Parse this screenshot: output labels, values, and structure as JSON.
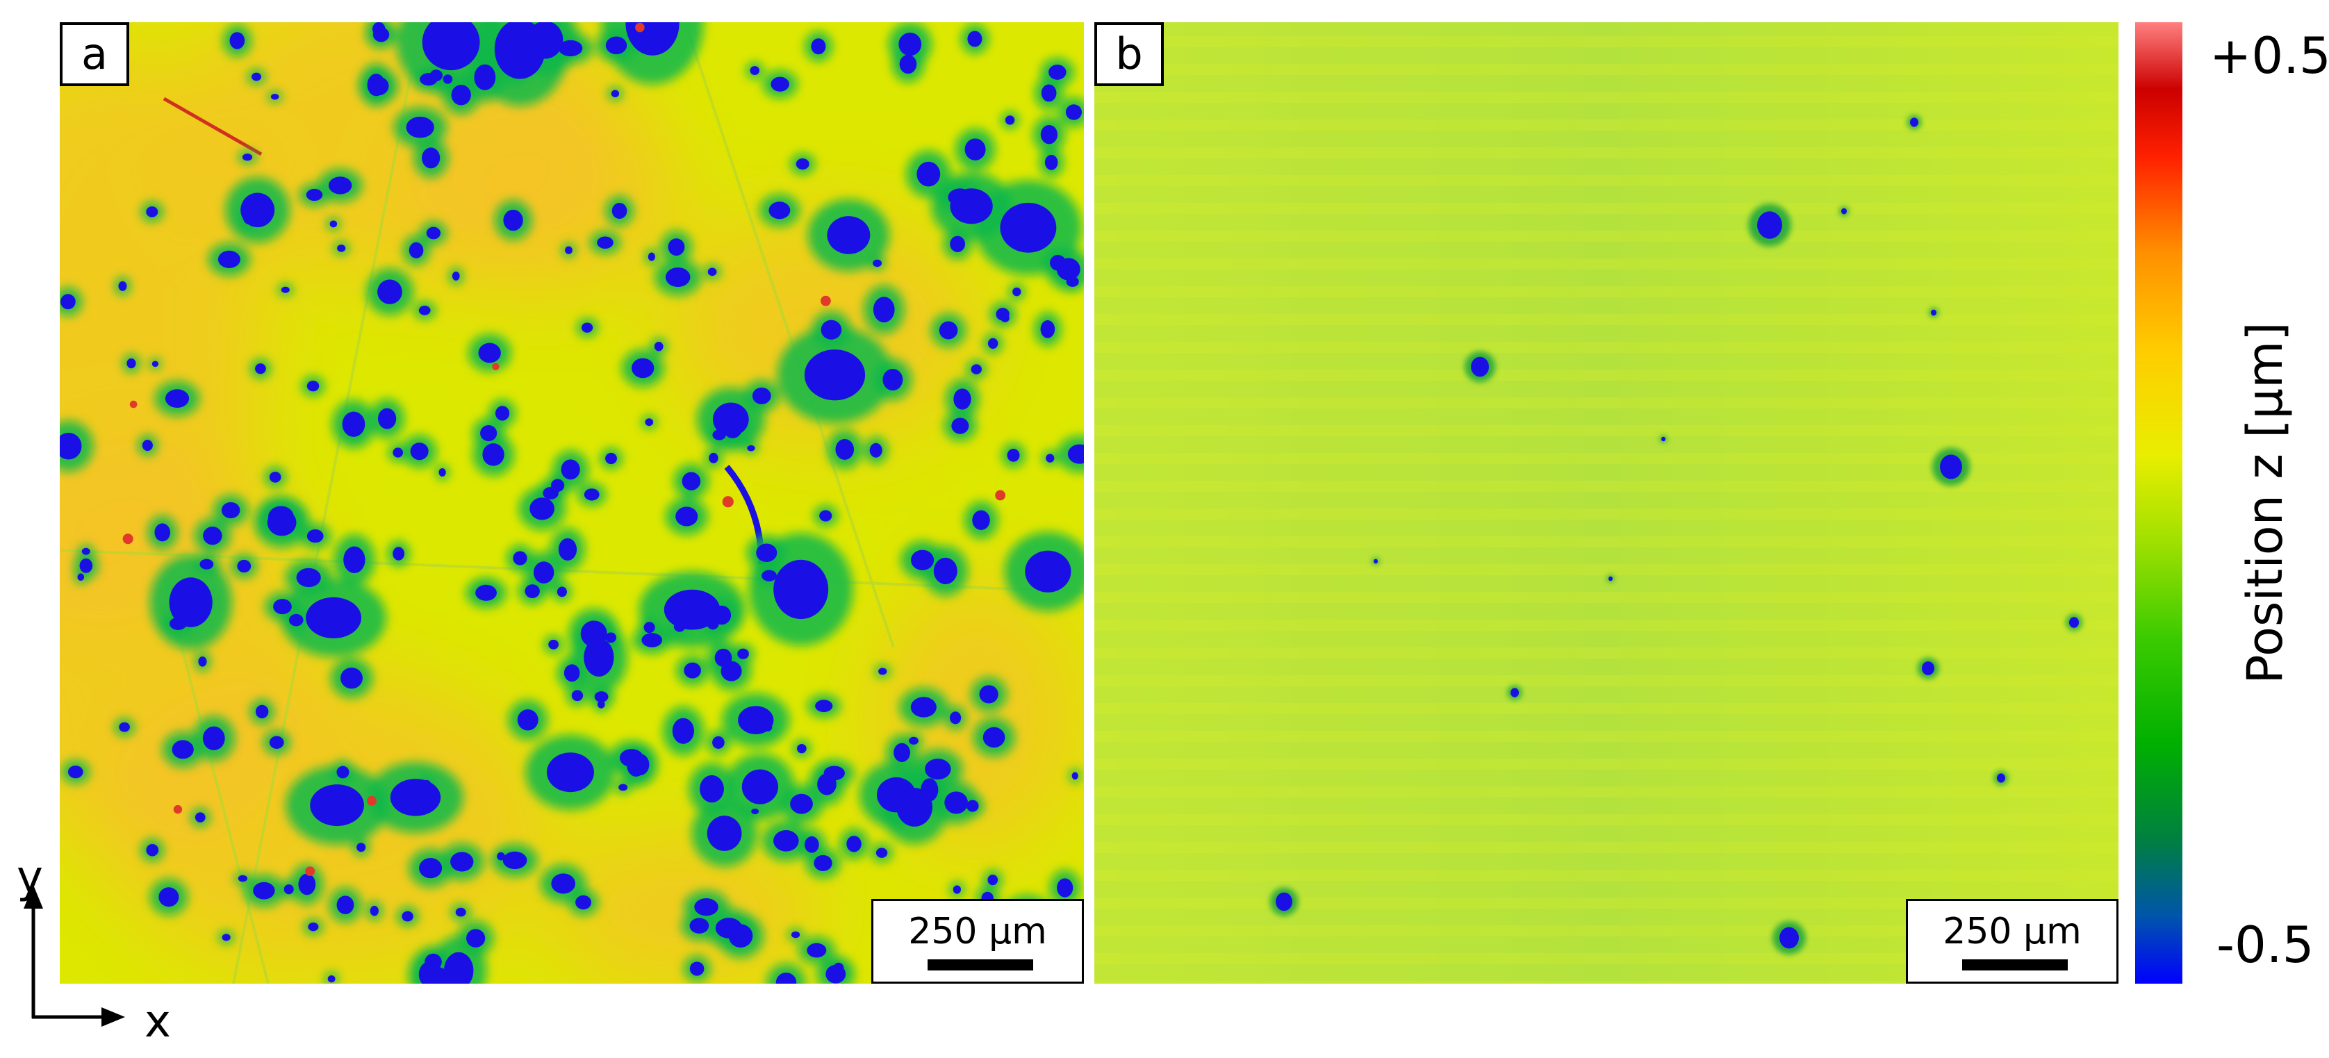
{
  "panel_a": {
    "label": "a",
    "scalebar_text": "250 µm"
  },
  "panel_b": {
    "label": "b",
    "scalebar_text": "250 µm"
  },
  "colorbar": {
    "title": "Position z [µm]",
    "max_label": "+0.5",
    "min_label": "-0.5",
    "colors": [
      "#0000ff",
      "#008040",
      "#00b000",
      "#a0e000",
      "#e9ee00",
      "#ff9000",
      "#ff2000",
      "#ff8080"
    ]
  },
  "axes": {
    "x_label": "x",
    "y_label": "y"
  },
  "colors": {
    "surface_a": "#dfe800",
    "surface_b": "#b8e43a",
    "pit": "#1a10e6",
    "pit_halo": "#12b84a"
  }
}
